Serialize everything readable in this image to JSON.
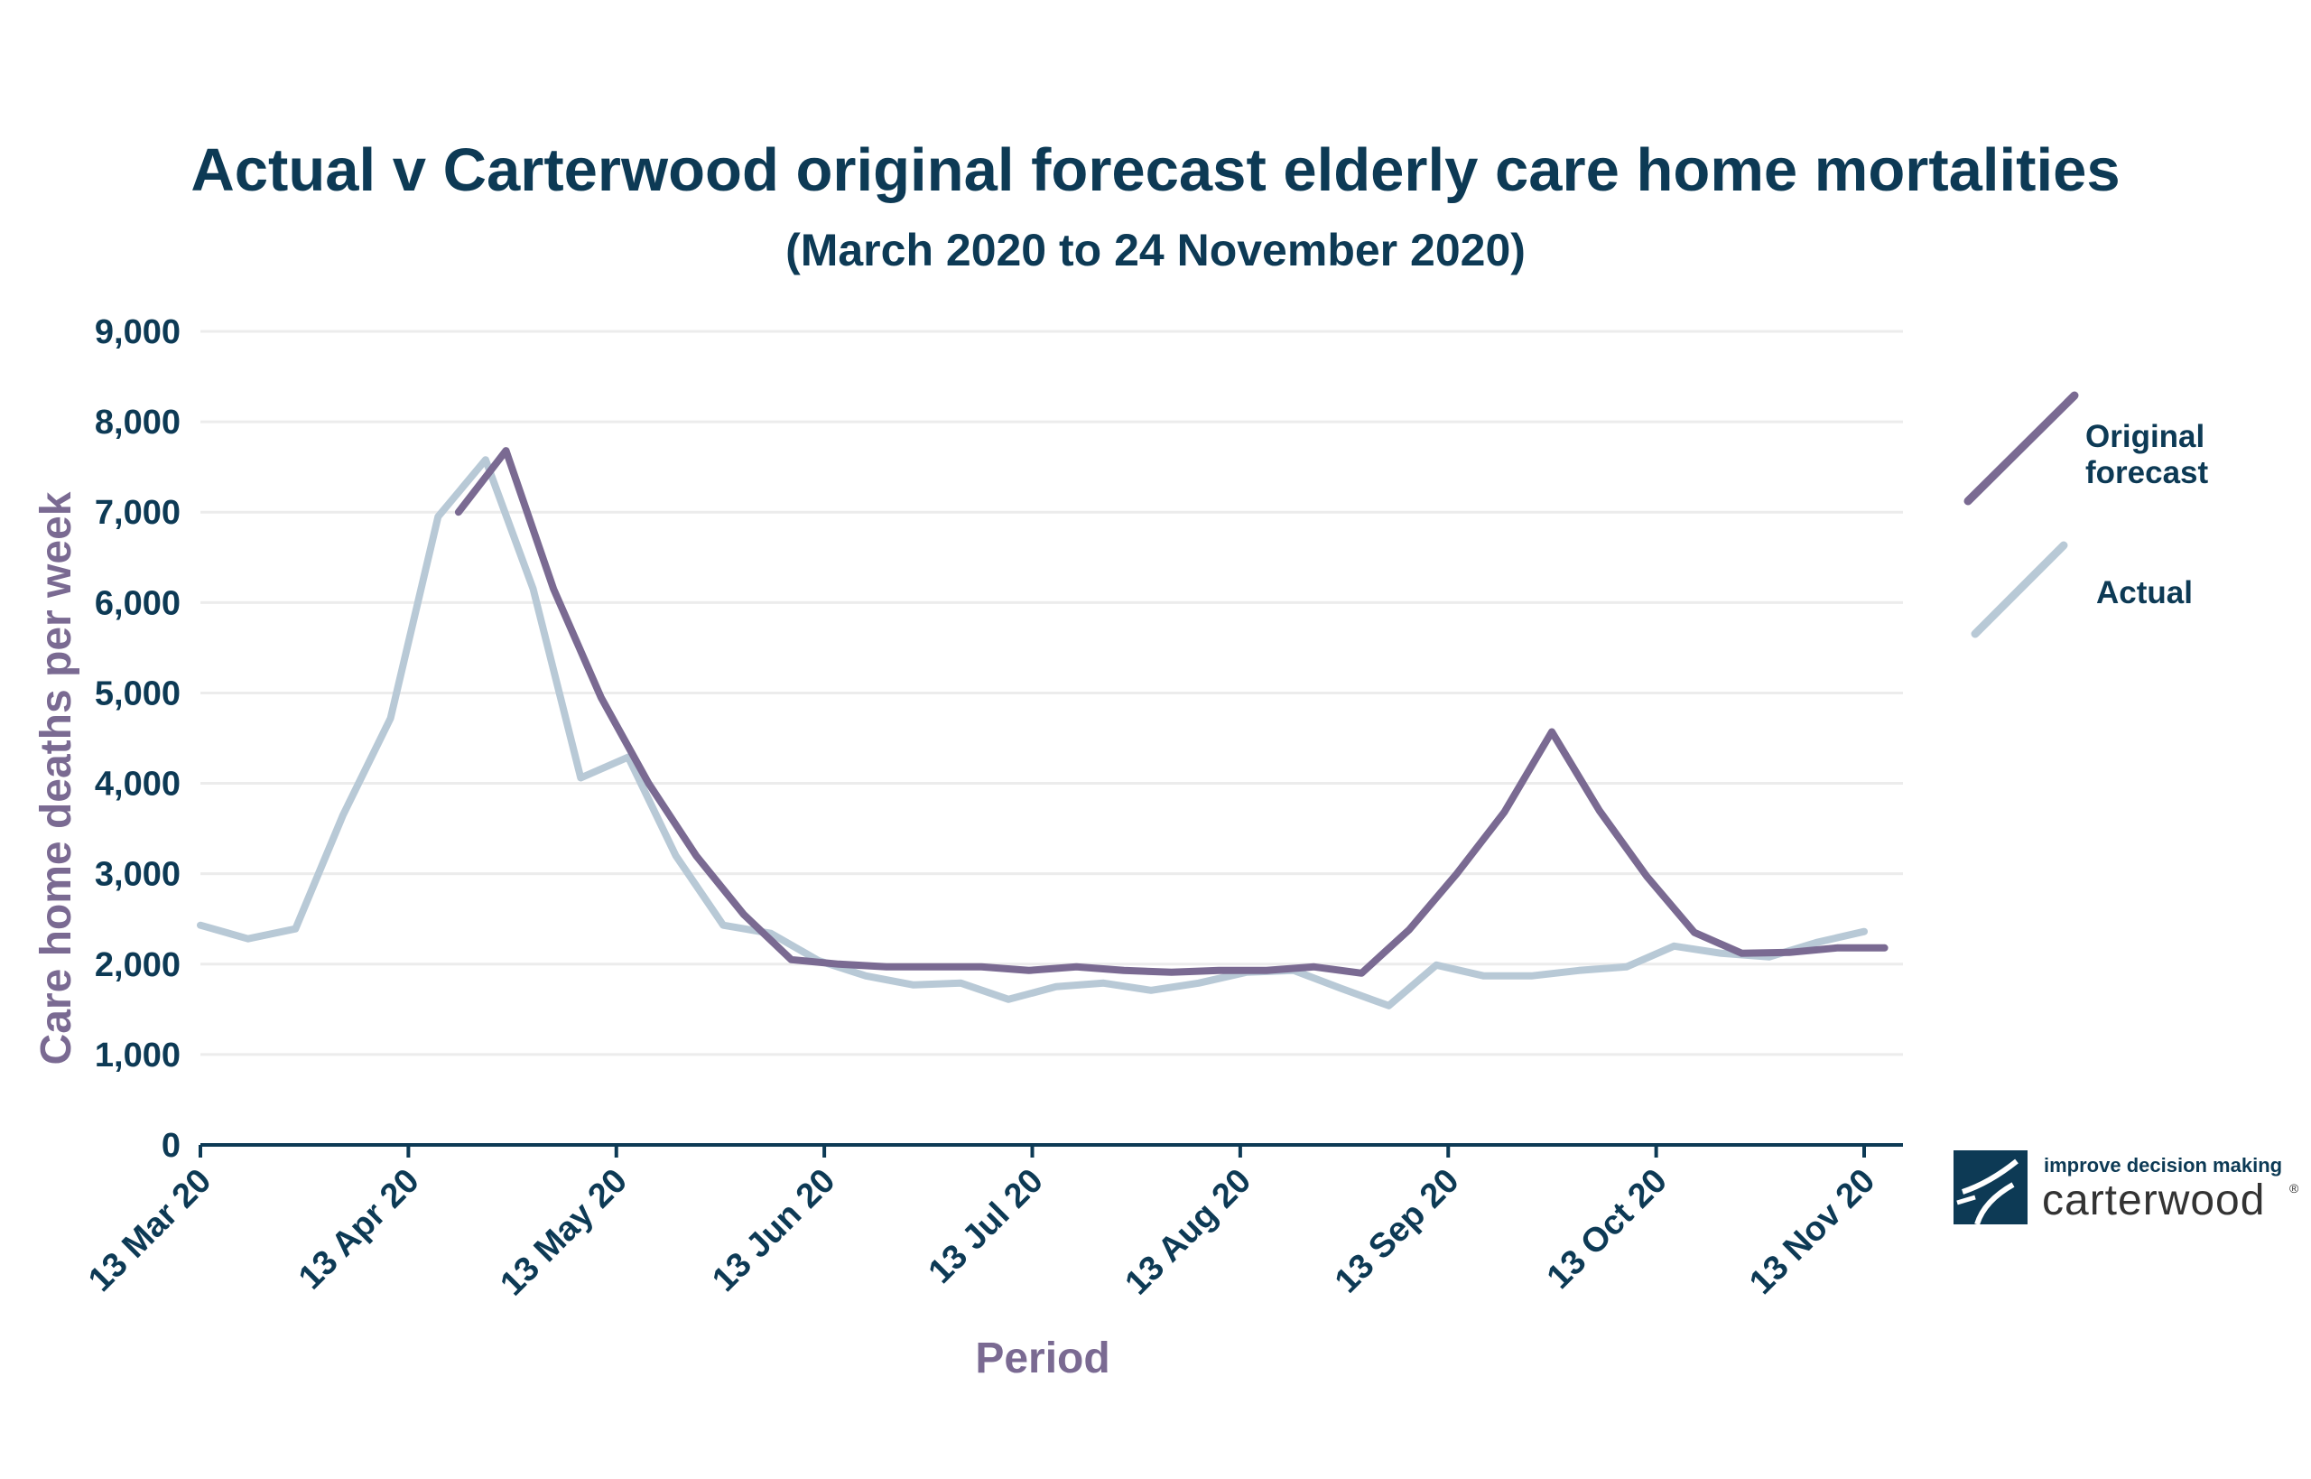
{
  "title": "Actual v Carterwood original forecast elderly care home mortalities",
  "subtitle": "(March 2020 to 24 November 2020)",
  "logo": {
    "tagline": "improve decision making",
    "brand": "carterwood",
    "reg": "®",
    "colors": {
      "mark": "#0d3a55",
      "text": "#333333"
    }
  },
  "colors": {
    "text": "#0d3a55",
    "axis_label": "#7a6a92",
    "forecast": "#7a6a92",
    "actual": "#b8c9d6",
    "grid": "#ececec"
  },
  "chart_data": {
    "type": "line",
    "title": "Actual v Carterwood original forecast elderly care home mortalities",
    "subtitle": "(March 2020 to 24 November 2020)",
    "xlabel": "Period",
    "ylabel": "Care home deaths per week",
    "x_ticks": [
      "13 Mar 20",
      "13 Apr 20",
      "13 May 20",
      "13 Jun 20",
      "13 Jul 20",
      "13 Aug 20",
      "13 Sep 20",
      "13 Oct 20",
      "13 Nov 20"
    ],
    "x_range": [
      "2020-03-13",
      "2020-11-13"
    ],
    "y_ticks": [
      "0",
      "1,000",
      "2,000",
      "3,000",
      "4,000",
      "5,000",
      "6,000",
      "7,000",
      "8,000",
      "9,000"
    ],
    "ylim": [
      0,
      9000
    ],
    "grid": "horizontal",
    "legend_position": "right",
    "series": [
      {
        "name": "Original forecast",
        "color": "#7a6a92",
        "points": [
          [
            "2020-04-20",
            7000
          ],
          [
            "2020-04-27",
            7680
          ],
          [
            "2020-05-04",
            6150
          ],
          [
            "2020-05-11",
            4950
          ],
          [
            "2020-05-18",
            4000
          ],
          [
            "2020-05-25",
            3200
          ],
          [
            "2020-06-01",
            2550
          ],
          [
            "2020-06-08",
            2050
          ],
          [
            "2020-06-15",
            2000
          ],
          [
            "2020-06-22",
            1970
          ],
          [
            "2020-06-29",
            1970
          ],
          [
            "2020-07-06",
            1970
          ],
          [
            "2020-07-13",
            1930
          ],
          [
            "2020-07-20",
            1970
          ],
          [
            "2020-07-27",
            1930
          ],
          [
            "2020-08-03",
            1910
          ],
          [
            "2020-08-10",
            1930
          ],
          [
            "2020-08-17",
            1930
          ],
          [
            "2020-08-24",
            1970
          ],
          [
            "2020-08-31",
            1900
          ],
          [
            "2020-09-07",
            2380
          ],
          [
            "2020-09-14",
            3000
          ],
          [
            "2020-09-21",
            3680
          ],
          [
            "2020-09-28",
            4570
          ],
          [
            "2020-10-05",
            3700
          ],
          [
            "2020-10-12",
            2970
          ],
          [
            "2020-10-19",
            2350
          ],
          [
            "2020-10-26",
            2120
          ],
          [
            "2020-11-02",
            2130
          ],
          [
            "2020-11-09",
            2180
          ],
          [
            "2020-11-16",
            2180
          ]
        ]
      },
      {
        "name": "Actual",
        "color": "#b8c9d6",
        "points": [
          [
            "2020-03-13",
            2430
          ],
          [
            "2020-03-20",
            2280
          ],
          [
            "2020-03-27",
            2390
          ],
          [
            "2020-04-03",
            3650
          ],
          [
            "2020-04-10",
            4720
          ],
          [
            "2020-04-17",
            6950
          ],
          [
            "2020-04-24",
            7580
          ],
          [
            "2020-05-01",
            6150
          ],
          [
            "2020-05-08",
            4060
          ],
          [
            "2020-05-15",
            4290
          ],
          [
            "2020-05-22",
            3200
          ],
          [
            "2020-05-29",
            2430
          ],
          [
            "2020-06-05",
            2340
          ],
          [
            "2020-06-12",
            2040
          ],
          [
            "2020-06-19",
            1870
          ],
          [
            "2020-06-26",
            1770
          ],
          [
            "2020-07-03",
            1790
          ],
          [
            "2020-07-10",
            1610
          ],
          [
            "2020-07-17",
            1750
          ],
          [
            "2020-07-24",
            1790
          ],
          [
            "2020-07-31",
            1710
          ],
          [
            "2020-08-07",
            1790
          ],
          [
            "2020-08-14",
            1910
          ],
          [
            "2020-08-21",
            1930
          ],
          [
            "2020-08-28",
            1730
          ],
          [
            "2020-09-04",
            1540
          ],
          [
            "2020-09-11",
            1990
          ],
          [
            "2020-09-18",
            1870
          ],
          [
            "2020-09-25",
            1870
          ],
          [
            "2020-10-02",
            1930
          ],
          [
            "2020-10-09",
            1970
          ],
          [
            "2020-10-16",
            2200
          ],
          [
            "2020-10-23",
            2120
          ],
          [
            "2020-10-30",
            2080
          ],
          [
            "2020-11-06",
            2240
          ],
          [
            "2020-11-13",
            2360
          ]
        ]
      }
    ]
  }
}
